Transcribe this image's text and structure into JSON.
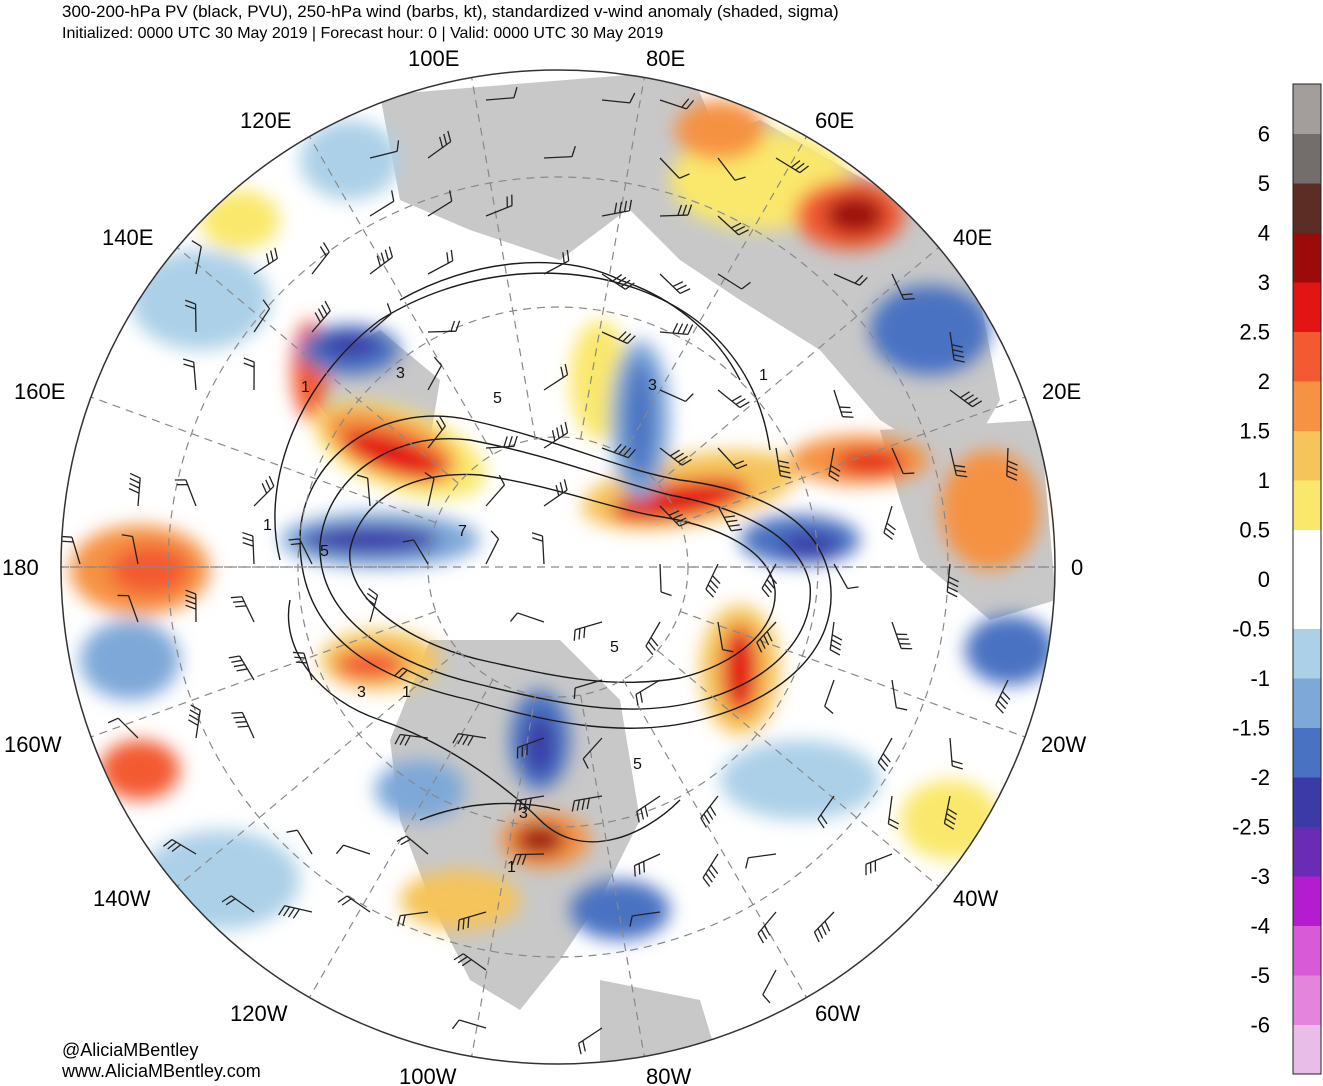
{
  "header": {
    "title": "300-200-hPa PV (black, PVU), 250-hPa wind (barbs, kt), standardized v-wind anomaly (shaded, sigma)",
    "subtitle": "Initialized: 0000 UTC 30 May 2019 | Forecast hour: 0 | Valid: 0000 UTC 30 May 2019"
  },
  "credits": {
    "handle": "@AliciaMBentley",
    "website": "www.AliciaMBentley.com"
  },
  "map": {
    "projection": "north-polar-stereographic",
    "longitude_labels": [
      "100E",
      "80E",
      "120E",
      "60E",
      "140E",
      "40E",
      "160E",
      "20E",
      "180",
      "0",
      "160W",
      "20W",
      "140W",
      "40W",
      "120W",
      "60W",
      "100W",
      "80W"
    ],
    "pv_contour_labels": [
      "3",
      "1",
      "5",
      "3",
      "1",
      "1",
      "5",
      "7",
      "3",
      "1",
      "5",
      "5",
      "3",
      "1"
    ]
  },
  "colorbar": {
    "labels": [
      "6",
      "5",
      "4",
      "3",
      "2.5",
      "2",
      "1.5",
      "1",
      "0.5",
      "0",
      "-0.5",
      "-1",
      "-1.5",
      "-2",
      "-2.5",
      "-3",
      "-4",
      "-5",
      "-6"
    ],
    "colors": [
      "#a39e9c",
      "#736d6b",
      "#5c2d25",
      "#9c0a0a",
      "#e31414",
      "#f35a32",
      "#f59243",
      "#f5c45a",
      "#fae86c",
      "#ffffff",
      "#ffffff",
      "#acd0e8",
      "#7ea8d8",
      "#4a72c2",
      "#3b3aa6",
      "#6a2cb4",
      "#b41cd0",
      "#d85ad6",
      "#e484dc",
      "#e8bde8"
    ]
  }
}
